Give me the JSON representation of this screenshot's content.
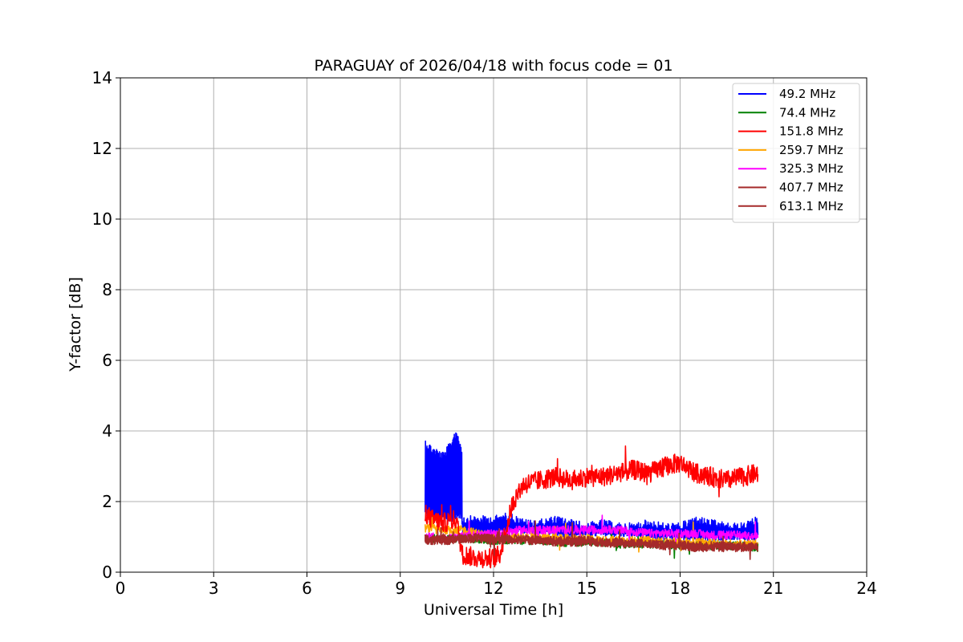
{
  "chart_data": {
    "type": "line",
    "title": "PARAGUAY of 2026/04/18 with focus code = 01",
    "xlabel": "Universal Time [h]",
    "ylabel": "Y-factor [dB]",
    "xlim": [
      0,
      24
    ],
    "ylim": [
      0,
      14
    ],
    "xticks": [
      0,
      3,
      6,
      9,
      12,
      15,
      18,
      21,
      24
    ],
    "yticks": [
      0,
      2,
      4,
      6,
      8,
      10,
      12,
      14
    ],
    "grid": true,
    "legend_position": "top-right",
    "series": [
      {
        "name": " 49.2 MHz",
        "color": "#0000ff",
        "x": [
          9.8,
          10.0,
          10.2,
          10.4,
          10.6,
          10.8,
          10.98,
          11.0,
          11.5,
          12.0,
          12.5,
          13.0,
          13.5,
          14.0,
          14.5,
          15.0,
          15.5,
          16.0,
          16.5,
          17.0,
          17.5,
          18.0,
          18.5,
          19.0,
          19.5,
          20.0,
          20.5
        ],
        "y_min": [
          1.6,
          1.5,
          1.4,
          1.5,
          1.4,
          1.5,
          1.5,
          1.0,
          1.0,
          1.1,
          1.1,
          1.1,
          1.1,
          1.0,
          1.0,
          1.0,
          1.0,
          1.0,
          1.0,
          0.9,
          0.9,
          0.9,
          0.9,
          0.9,
          0.9,
          0.9,
          0.9
        ],
        "y_max": [
          3.8,
          3.6,
          3.5,
          3.4,
          3.7,
          4.1,
          3.6,
          1.6,
          1.6,
          1.6,
          1.7,
          1.5,
          1.5,
          1.6,
          1.5,
          1.4,
          1.5,
          1.4,
          1.4,
          1.5,
          1.4,
          1.4,
          1.6,
          1.5,
          1.4,
          1.4,
          1.6
        ]
      },
      {
        "name": " 74.4 MHz",
        "color": "#008000",
        "x": [
          9.8,
          10.5,
          11.0,
          11.5,
          12.0,
          12.5,
          13.0,
          13.5,
          14.0,
          14.5,
          15.0,
          15.5,
          16.0,
          16.5,
          17.0,
          17.5,
          18.0,
          18.5,
          19.0,
          19.5,
          20.0,
          20.5
        ],
        "y": [
          0.95,
          0.95,
          0.95,
          0.95,
          0.9,
          0.9,
          0.9,
          0.9,
          0.85,
          0.85,
          0.85,
          0.85,
          0.8,
          0.8,
          0.8,
          0.8,
          0.75,
          0.75,
          0.75,
          0.75,
          0.75,
          0.7
        ]
      },
      {
        "name": "151.8 MHz",
        "color": "#ff0000",
        "x": [
          9.8,
          10.0,
          10.4,
          10.8,
          11.0,
          11.5,
          12.0,
          12.2,
          12.4,
          12.6,
          12.8,
          13.0,
          13.5,
          14.0,
          14.5,
          15.0,
          15.5,
          16.0,
          16.5,
          17.0,
          17.5,
          18.0,
          18.5,
          19.0,
          19.5,
          20.0,
          20.5
        ],
        "y": [
          1.7,
          1.5,
          1.4,
          1.5,
          0.5,
          0.4,
          0.4,
          0.5,
          1.2,
          1.9,
          2.3,
          2.5,
          2.6,
          2.7,
          2.6,
          2.7,
          2.7,
          2.8,
          2.9,
          2.8,
          3.0,
          3.1,
          2.8,
          2.7,
          2.6,
          2.7,
          2.8
        ]
      },
      {
        "name": "259.7 MHz",
        "color": "#ffa500",
        "x": [
          9.8,
          10.5,
          11.0,
          11.5,
          12.0,
          12.5,
          13.0,
          13.5,
          14.0,
          14.5,
          15.0,
          15.5,
          16.0,
          16.5,
          17.0,
          17.5,
          18.0,
          18.5,
          19.0,
          19.5,
          20.0,
          20.5
        ],
        "y": [
          1.25,
          1.2,
          1.2,
          1.1,
          1.0,
          1.0,
          1.0,
          1.0,
          0.95,
          0.95,
          0.95,
          0.9,
          0.9,
          0.9,
          0.9,
          0.85,
          0.85,
          0.85,
          0.85,
          0.8,
          0.8,
          0.8
        ]
      },
      {
        "name": "325.3 MHz",
        "color": "#ff00ff",
        "x": [
          9.8,
          10.5,
          11.0,
          11.5,
          12.0,
          12.5,
          13.0,
          13.5,
          14.0,
          14.5,
          15.0,
          15.5,
          16.0,
          16.5,
          17.0,
          17.5,
          18.0,
          18.5,
          19.0,
          19.5,
          20.0,
          20.5
        ],
        "y": [
          1.0,
          0.95,
          1.0,
          1.05,
          1.1,
          1.15,
          1.2,
          1.2,
          1.2,
          1.2,
          1.2,
          1.2,
          1.2,
          1.15,
          1.1,
          1.1,
          1.1,
          1.1,
          1.05,
          1.05,
          1.05,
          1.0
        ]
      },
      {
        "name": "407.7 MHz",
        "color": "#a52a2a",
        "x": [
          9.8,
          10.5,
          11.0,
          11.5,
          12.0,
          12.5,
          13.0,
          13.5,
          14.0,
          14.5,
          15.0,
          15.5,
          16.0,
          16.5,
          17.0,
          17.5,
          18.0,
          18.5,
          19.0,
          19.5,
          20.0,
          20.5
        ],
        "y": [
          0.9,
          0.9,
          0.95,
          0.95,
          0.9,
          0.9,
          0.9,
          0.9,
          0.85,
          0.85,
          0.85,
          0.85,
          0.8,
          0.8,
          0.8,
          0.75,
          0.75,
          0.7,
          0.7,
          0.7,
          0.7,
          0.7
        ]
      },
      {
        "name": "613.1 MHz",
        "color": "#a52a2a",
        "x": [
          9.8,
          10.5,
          11.0,
          11.5,
          12.0,
          12.5,
          13.0,
          13.5,
          14.0,
          14.5,
          15.0,
          15.5,
          16.0,
          16.5,
          17.0,
          17.5,
          18.0,
          18.5,
          19.0,
          19.5,
          20.0,
          20.5
        ],
        "y": [
          0.95,
          0.95,
          0.95,
          1.0,
          0.95,
          0.95,
          0.95,
          0.9,
          0.9,
          0.9,
          0.9,
          0.85,
          0.85,
          0.85,
          0.8,
          0.8,
          0.8,
          0.75,
          0.75,
          0.75,
          0.75,
          0.7
        ]
      }
    ]
  }
}
